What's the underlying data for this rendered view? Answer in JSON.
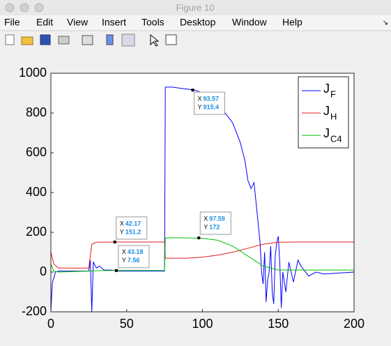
{
  "window": {
    "title": "Figure 10",
    "menu": [
      "File",
      "Edit",
      "View",
      "Insert",
      "Tools",
      "Desktop",
      "Window",
      "Help"
    ]
  },
  "chart_data": {
    "type": "line",
    "xlim": [
      0,
      200
    ],
    "ylim": [
      -200,
      1000
    ],
    "xticks": [
      0,
      50,
      100,
      150,
      200
    ],
    "yticks": [
      -200,
      0,
      200,
      400,
      600,
      800,
      1000
    ],
    "legend": "upper right",
    "series": [
      {
        "name": "J",
        "subscript": "F",
        "color": "#0000ff",
        "x": [
          0,
          1,
          2,
          3,
          5,
          10,
          20,
          25,
          26,
          27,
          28,
          30,
          32,
          35,
          40,
          45,
          50,
          60,
          70,
          75,
          75.5,
          80,
          90,
          95,
          100,
          105,
          110,
          115,
          120,
          125,
          128,
          130,
          132,
          134,
          136,
          138,
          139,
          140,
          141,
          142,
          143,
          144,
          145,
          146,
          147,
          148,
          149,
          150,
          151,
          152,
          153,
          155,
          157,
          160,
          163,
          165,
          170,
          175,
          180,
          190,
          200
        ],
        "values": [
          -200,
          -50,
          -30,
          0,
          5,
          5,
          5,
          5,
          60,
          -200,
          50,
          20,
          30,
          10,
          10,
          5,
          5,
          5,
          5,
          5,
          930,
          930,
          920,
          915,
          900,
          880,
          850,
          800,
          750,
          650,
          560,
          460,
          420,
          450,
          300,
          150,
          0,
          -60,
          100,
          -150,
          -40,
          0,
          130,
          -100,
          -160,
          80,
          150,
          180,
          50,
          -180,
          0,
          -100,
          50,
          -50,
          60,
          30,
          -20,
          0,
          -10,
          -5,
          0
        ]
      },
      {
        "name": "J",
        "subscript": "H",
        "color": "#e41a1c",
        "x": [
          0,
          2,
          5,
          10,
          20,
          25,
          27,
          30,
          40,
          50,
          60,
          70,
          75,
          75.5,
          90,
          100,
          110,
          120,
          130,
          140,
          150,
          160,
          200
        ],
        "values": [
          100,
          40,
          20,
          20,
          20,
          20,
          140,
          150,
          151,
          151,
          151,
          151,
          151,
          70,
          70,
          75,
          85,
          100,
          120,
          140,
          150,
          151,
          151
        ]
      },
      {
        "name": "J",
        "subscript": "C4",
        "color": "#00c000",
        "x": [
          0,
          2,
          5,
          25,
          30,
          43,
          75,
          75.5,
          90,
          100,
          110,
          120,
          130,
          140,
          150,
          160,
          200
        ],
        "values": [
          40,
          5,
          0,
          5,
          7,
          7.56,
          8,
          172,
          172,
          170,
          160,
          130,
          80,
          30,
          10,
          10,
          10
        ]
      }
    ],
    "datatip_labels": [
      "X",
      "Y"
    ],
    "annotations": [
      {
        "x": 42.17,
        "y": 151.2
      },
      {
        "x": 43.18,
        "y": 7.56
      },
      {
        "x": 93.57,
        "y": 915.4
      },
      {
        "x": 97.59,
        "y": 172
      }
    ]
  }
}
